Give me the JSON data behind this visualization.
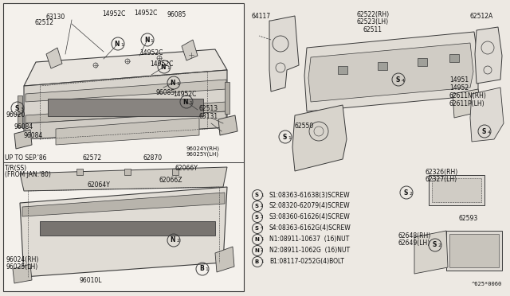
{
  "bg_color": "#ede9e3",
  "line_color": "#3a3a3a",
  "text_color": "#111111",
  "footnote": "^625*0060",
  "legend_items": [
    [
      "S",
      "1",
      "08363-61638(3)SCREW"
    ],
    [
      "S",
      "2",
      "08320-62079(4)SCREW"
    ],
    [
      "S",
      "3",
      "08360-61626(4)SCREW"
    ],
    [
      "S",
      "4",
      "08363-6162G(4)SCREW"
    ],
    [
      "N",
      "1",
      "08911-10637  (16)NUT"
    ],
    [
      "N",
      "2",
      "08911-1062G  (16)NUT"
    ],
    [
      "B",
      "1",
      "08117-0252G(4)BOLT"
    ]
  ]
}
